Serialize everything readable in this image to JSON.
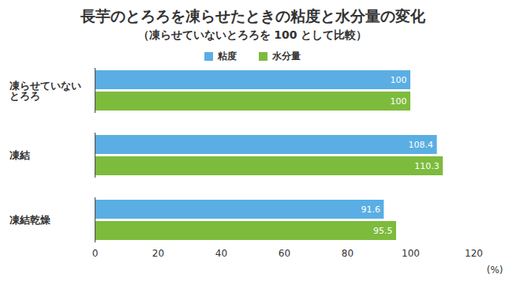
{
  "chart_data": {
    "type": "bar",
    "orientation": "horizontal",
    "title": "長芋のとろろを凍らせたときの粘度と水分量の変化",
    "subtitle": "（凍らせていないとろろを 100 として比較）",
    "categories": [
      "凍らせていない\nとろろ",
      "凍結",
      "凍結乾燥"
    ],
    "series": [
      {
        "name": "粘度",
        "color": "#5aaee3",
        "values": [
          100,
          108.4,
          91.6
        ]
      },
      {
        "name": "水分量",
        "color": "#7dbb3c",
        "values": [
          100,
          110.3,
          95.5
        ]
      }
    ],
    "xlabel": "(%)",
    "xlim": [
      0,
      120
    ],
    "xticks": [
      0,
      20,
      40,
      60,
      80,
      100,
      120
    ],
    "grid": false,
    "legend": "top",
    "data_labels": true
  }
}
